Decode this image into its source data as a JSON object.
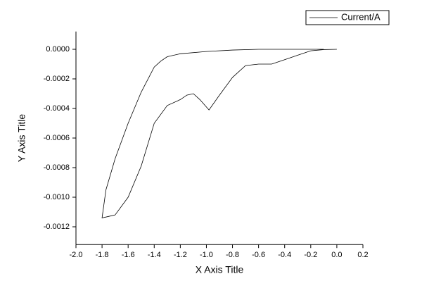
{
  "chart_data": {
    "type": "line",
    "x_label": "X Axis Title",
    "y_label": "Y Axis Title",
    "x": [
      0.0,
      -0.1,
      -0.2,
      -0.3,
      -0.4,
      -0.5,
      -0.6,
      -0.7,
      -0.8,
      -0.9,
      -0.98,
      -1.05,
      -1.1,
      -1.15,
      -1.2,
      -1.3,
      -1.4,
      -1.5,
      -1.6,
      -1.7,
      -1.75,
      -1.8,
      -1.77,
      -1.7,
      -1.6,
      -1.5,
      -1.4,
      -1.35,
      -1.3,
      -1.2,
      -1.0,
      -0.8,
      -0.6,
      -0.3,
      -0.1
    ],
    "series": [
      {
        "name": "Current/A",
        "color": "#000000",
        "values": [
          0.0,
          -2e-06,
          -1e-05,
          -4e-05,
          -7e-05,
          -0.0001,
          -0.0001,
          -0.00011,
          -0.00019,
          -0.00031,
          -0.00041,
          -0.00034,
          -0.0003,
          -0.00031,
          -0.00034,
          -0.00038,
          -0.0005,
          -0.00079,
          -0.001,
          -0.00112,
          -0.00113,
          -0.00114,
          -0.00095,
          -0.00074,
          -0.0005,
          -0.00029,
          -0.00012,
          -8e-05,
          -5e-05,
          -3e-05,
          -1.5e-05,
          -5e-06,
          0.0,
          0.0,
          0.0
        ]
      }
    ],
    "xlim": [
      -2.0,
      0.2
    ],
    "ylim": [
      -0.00132,
      0.00012
    ],
    "xticks": [
      {
        "value": -2.0,
        "label": "-2.0"
      },
      {
        "value": -1.8,
        "label": "-1.8"
      },
      {
        "value": -1.6,
        "label": "-1.6"
      },
      {
        "value": -1.4,
        "label": "-1.4"
      },
      {
        "value": -1.2,
        "label": "-1.2"
      },
      {
        "value": -1.0,
        "label": "-1.0"
      },
      {
        "value": -0.8,
        "label": "-0.8"
      },
      {
        "value": -0.6,
        "label": "-0.6"
      },
      {
        "value": -0.4,
        "label": "-0.4"
      },
      {
        "value": -0.2,
        "label": "-0.2"
      },
      {
        "value": 0.0,
        "label": "0.0"
      },
      0.2
    ],
    "yticks": [
      {
        "value": 0.0,
        "label": "0.0000"
      },
      {
        "value": -0.0002,
        "label": "-0.0002"
      },
      {
        "value": -0.0004,
        "label": "-0.0004"
      },
      {
        "value": -0.0006,
        "label": "-0.0006"
      },
      {
        "value": -0.0008,
        "label": "-0.0008"
      },
      {
        "value": -0.001,
        "label": "-0.0010"
      },
      {
        "value": -0.0012,
        "label": "-0.0012"
      }
    ],
    "grid": false,
    "legend": "top-right"
  }
}
